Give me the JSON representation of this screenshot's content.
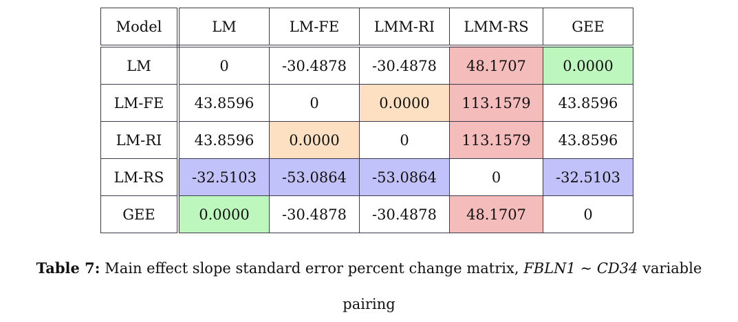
{
  "table": {
    "corner": "Model",
    "columns": [
      "LM",
      "LM-FE",
      "LMM-RI",
      "LMM-RS",
      "GEE"
    ],
    "rows": [
      {
        "label": "LM",
        "cells": [
          "0",
          "-30.4878",
          "-30.4878",
          "48.1707",
          "0.0000"
        ]
      },
      {
        "label": "LM-FE",
        "cells": [
          "43.8596",
          "0",
          "0.0000",
          "113.1579",
          "43.8596"
        ]
      },
      {
        "label": "LM-RI",
        "cells": [
          "43.8596",
          "0.0000",
          "0",
          "113.1579",
          "43.8596"
        ]
      },
      {
        "label": "LM-RS",
        "cells": [
          "-32.5103",
          "-53.0864",
          "-53.0864",
          "0",
          "-32.5103"
        ]
      },
      {
        "label": "GEE",
        "cells": [
          "0.0000",
          "-30.4878",
          "-30.4878",
          "48.1707",
          "0"
        ]
      }
    ],
    "highlight_colors": {
      "red": "#f5bcbc",
      "green": "#bdf7bd",
      "orange": "#fde0c2",
      "blue": "#c2c2fb"
    }
  },
  "caption": {
    "label": "Table 7:",
    "text_before": "Main effect slope standard error percent change matrix,",
    "math": "FBLN1 ∼ CD34",
    "text_after": "variable",
    "line2": "pairing"
  }
}
